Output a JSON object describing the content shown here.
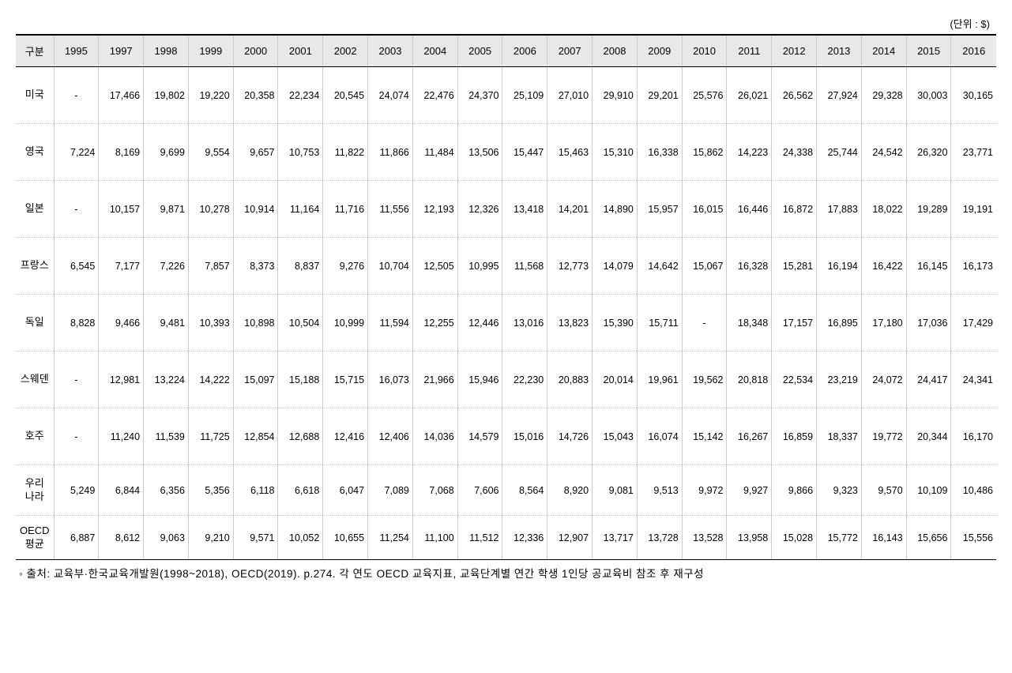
{
  "unit_label": "(단위 : $)",
  "table": {
    "header_background": "#e8e8e8",
    "border_color": "#cccccc",
    "strong_border_color": "#000000",
    "columns": [
      "구분",
      "1995",
      "1997",
      "1998",
      "1999",
      "2000",
      "2001",
      "2002",
      "2003",
      "2004",
      "2005",
      "2006",
      "2007",
      "2008",
      "2009",
      "2010",
      "2011",
      "2012",
      "2013",
      "2014",
      "2015",
      "2016"
    ],
    "rows": [
      {
        "label": "미국",
        "values": [
          "-",
          "17,466",
          "19,802",
          "19,220",
          "20,358",
          "22,234",
          "20,545",
          "24,074",
          "22,476",
          "24,370",
          "25,109",
          "27,010",
          "29,910",
          "29,201",
          "25,576",
          "26,021",
          "26,562",
          "27,924",
          "29,328",
          "30,003",
          "30,165"
        ]
      },
      {
        "label": "영국",
        "values": [
          "7,224",
          "8,169",
          "9,699",
          "9,554",
          "9,657",
          "10,753",
          "11,822",
          "11,866",
          "11,484",
          "13,506",
          "15,447",
          "15,463",
          "15,310",
          "16,338",
          "15,862",
          "14,223",
          "24,338",
          "25,744",
          "24,542",
          "26,320",
          "23,771"
        ]
      },
      {
        "label": "일본",
        "values": [
          "-",
          "10,157",
          "9,871",
          "10,278",
          "10,914",
          "11,164",
          "11,716",
          "11,556",
          "12,193",
          "12,326",
          "13,418",
          "14,201",
          "14,890",
          "15,957",
          "16,015",
          "16,446",
          "16,872",
          "17,883",
          "18,022",
          "19,289",
          "19,191"
        ]
      },
      {
        "label": "프랑스",
        "values": [
          "6,545",
          "7,177",
          "7,226",
          "7,857",
          "8,373",
          "8,837",
          "9,276",
          "10,704",
          "12,505",
          "10,995",
          "11,568",
          "12,773",
          "14,079",
          "14,642",
          "15,067",
          "16,328",
          "15,281",
          "16,194",
          "16,422",
          "16,145",
          "16,173"
        ]
      },
      {
        "label": "독일",
        "values": [
          "8,828",
          "9,466",
          "9,481",
          "10,393",
          "10,898",
          "10,504",
          "10,999",
          "11,594",
          "12,255",
          "12,446",
          "13,016",
          "13,823",
          "15,390",
          "15,711",
          "-",
          "18,348",
          "17,157",
          "16,895",
          "17,180",
          "17,036",
          "17,429"
        ]
      },
      {
        "label": "스웨덴",
        "values": [
          "-",
          "12,981",
          "13,224",
          "14,222",
          "15,097",
          "15,188",
          "15,715",
          "16,073",
          "21,966",
          "15,946",
          "22,230",
          "20,883",
          "20,014",
          "19,961",
          "19,562",
          "20,818",
          "22,534",
          "23,219",
          "24,072",
          "24,417",
          "24,341"
        ]
      },
      {
        "label": "호주",
        "values": [
          "-",
          "11,240",
          "11,539",
          "11,725",
          "12,854",
          "12,688",
          "12,416",
          "12,406",
          "14,036",
          "14,579",
          "15,016",
          "14,726",
          "15,043",
          "16,074",
          "15,142",
          "16,267",
          "16,859",
          "18,337",
          "19,772",
          "20,344",
          "16,170"
        ]
      },
      {
        "label": "우리\n나라",
        "values": [
          "5,249",
          "6,844",
          "6,356",
          "5,356",
          "6,118",
          "6,618",
          "6,047",
          "7,089",
          "7,068",
          "7,606",
          "8,564",
          "8,920",
          "9,081",
          "9,513",
          "9,972",
          "9,927",
          "9,866",
          "9,323",
          "9,570",
          "10,109",
          "10,486"
        ]
      },
      {
        "label": "OECD\n평균",
        "values": [
          "6,887",
          "8,612",
          "9,063",
          "9,210",
          "9,571",
          "10,052",
          "10,655",
          "11,254",
          "11,100",
          "11,512",
          "12,336",
          "12,907",
          "13,717",
          "13,728",
          "13,528",
          "13,958",
          "15,028",
          "15,772",
          "16,143",
          "15,656",
          "15,556"
        ]
      }
    ]
  },
  "source_note": "◦ 출처: 교육부·한국교육개발원(1998~2018), OECD(2019). p.274. 각 연도 OECD 교육지표, 교육단계별 연간 학생 1인당 공교육비 참조 후 재구성"
}
